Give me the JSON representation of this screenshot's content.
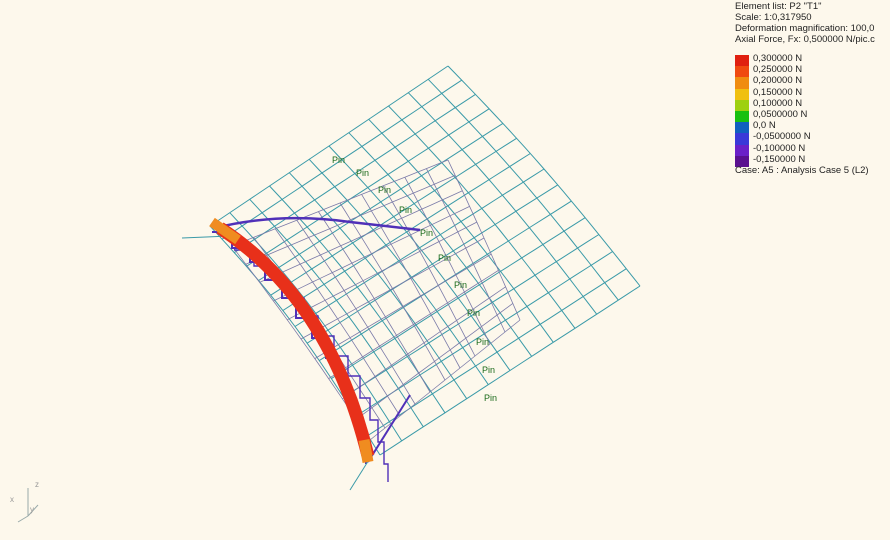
{
  "info": {
    "element_list": "Element list: P2 \"T1\"",
    "scale": "Scale: 1:0,317950",
    "deformation": "Deformation magnification: 100,0",
    "axial_force": "Axial Force, Fx: 0,500000 N/pic.c"
  },
  "legend": [
    {
      "label": "0,300000 N",
      "color": "#e02010"
    },
    {
      "label": "0,250000 N",
      "color": "#f04a10"
    },
    {
      "label": "0,200000 N",
      "color": "#f08c10"
    },
    {
      "label": "0,150000 N",
      "color": "#f0c010"
    },
    {
      "label": "0,100000 N",
      "color": "#9ed010"
    },
    {
      "label": "0,0500000 N",
      "color": "#18c010"
    },
    {
      "label": "0,0 N",
      "color": "#1060c0"
    },
    {
      "label": "-0,0500000 N",
      "color": "#3a38d8"
    },
    {
      "label": "-0,100000 N",
      "color": "#6a20c8"
    },
    {
      "label": "-0,150000 N",
      "color": "#5a1090"
    }
  ],
  "case_label": "Case: A5 : Analysis Case 5 (L2)",
  "support_label": "Pin",
  "axes": {
    "x": "x",
    "y": "y",
    "z": "z"
  },
  "colors": {
    "background": "#fdf8ec",
    "mesh_outer": "#3a9aa8",
    "mesh_inner": "#7a7aa8",
    "mesh_deformed": "#5030b8",
    "beam": "#e8301a",
    "beam_end": "#f08c20"
  }
}
